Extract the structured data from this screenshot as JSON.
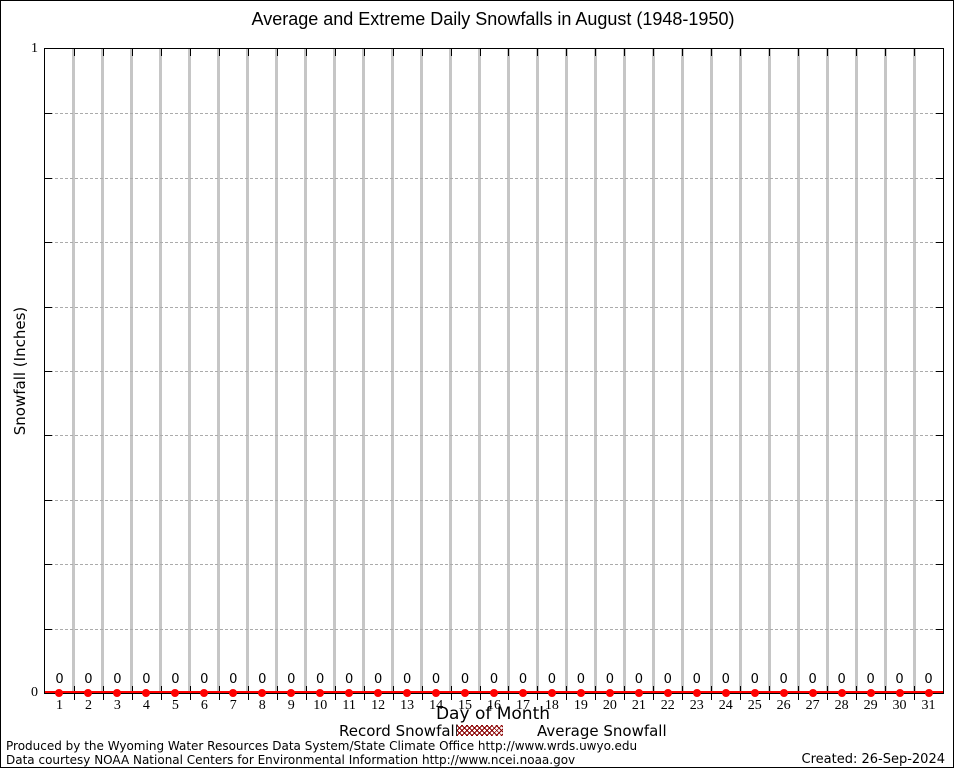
{
  "colors": {
    "average_series": "#ff0000",
    "record_series": "#8b0000",
    "vertical_grid": "#c6c6c6",
    "dotted_grid": "#ababab",
    "axis": "#000000"
  },
  "y_axis": {
    "top_label": "1",
    "bottom_label": "0"
  },
  "footer": {
    "line1": "Produced by the Wyoming Water Resources Data System/State Climate Office http://www.wrds.uwyo.edu",
    "line2": "Data courtesy NOAA National Centers for Environmental Information http://www.ncei.noaa.gov",
    "created": "Created: 26-Sep-2024"
  },
  "chart_data": {
    "type": "line",
    "title": "Average and Extreme Daily Snowfalls in August (1948-1950)",
    "xlabel": "Day of Month",
    "ylabel": "Snowfall (Inches)",
    "xlim": [
      0.5,
      31.5
    ],
    "ylim": [
      0,
      1
    ],
    "x_tick_labels": [
      "1",
      "2",
      "3",
      "4",
      "5",
      "6",
      "7",
      "8",
      "9",
      "10",
      "11",
      "12",
      "13",
      "14",
      "15",
      "16",
      "17",
      "18",
      "19",
      "20",
      "21",
      "22",
      "23",
      "24",
      "25",
      "26",
      "27",
      "28",
      "29",
      "30",
      "31"
    ],
    "x": [
      1,
      2,
      3,
      4,
      5,
      6,
      7,
      8,
      9,
      10,
      11,
      12,
      13,
      14,
      15,
      16,
      17,
      18,
      19,
      20,
      21,
      22,
      23,
      24,
      25,
      26,
      27,
      28,
      29,
      30,
      31
    ],
    "y_grid_step": 0.1,
    "x_grid_positions": [
      1.5,
      2.5,
      3.5,
      4.5,
      5.5,
      6.5,
      7.5,
      8.5,
      9.5,
      10.5,
      11.5,
      12.5,
      13.5,
      14.5,
      15.5,
      16.5,
      17.5,
      18.5,
      19.5,
      20.5,
      21.5,
      22.5,
      23.5,
      24.5,
      25.5,
      26.5,
      27.5,
      28.5,
      29.5,
      30.5
    ],
    "grid": true,
    "legend_position": "bottom-center",
    "series": [
      {
        "name": "Record Snowfall",
        "style": "hatched-box",
        "color": "#8b0000",
        "values": [
          0,
          0,
          0,
          0,
          0,
          0,
          0,
          0,
          0,
          0,
          0,
          0,
          0,
          0,
          0,
          0,
          0,
          0,
          0,
          0,
          0,
          0,
          0,
          0,
          0,
          0,
          0,
          0,
          0,
          0,
          0
        ]
      },
      {
        "name": "Average Snowfall",
        "style": "line-with-points",
        "color": "#ff0000",
        "values": [
          0,
          0,
          0,
          0,
          0,
          0,
          0,
          0,
          0,
          0,
          0,
          0,
          0,
          0,
          0,
          0,
          0,
          0,
          0,
          0,
          0,
          0,
          0,
          0,
          0,
          0,
          0,
          0,
          0,
          0,
          0
        ]
      }
    ],
    "point_labels": [
      "0",
      "0",
      "0",
      "0",
      "0",
      "0",
      "0",
      "0",
      "0",
      "0",
      "0",
      "0",
      "0",
      "0",
      "0",
      "0",
      "0",
      "0",
      "0",
      "0",
      "0",
      "0",
      "0",
      "0",
      "0",
      "0",
      "0",
      "0",
      "0",
      "0",
      "0"
    ]
  }
}
